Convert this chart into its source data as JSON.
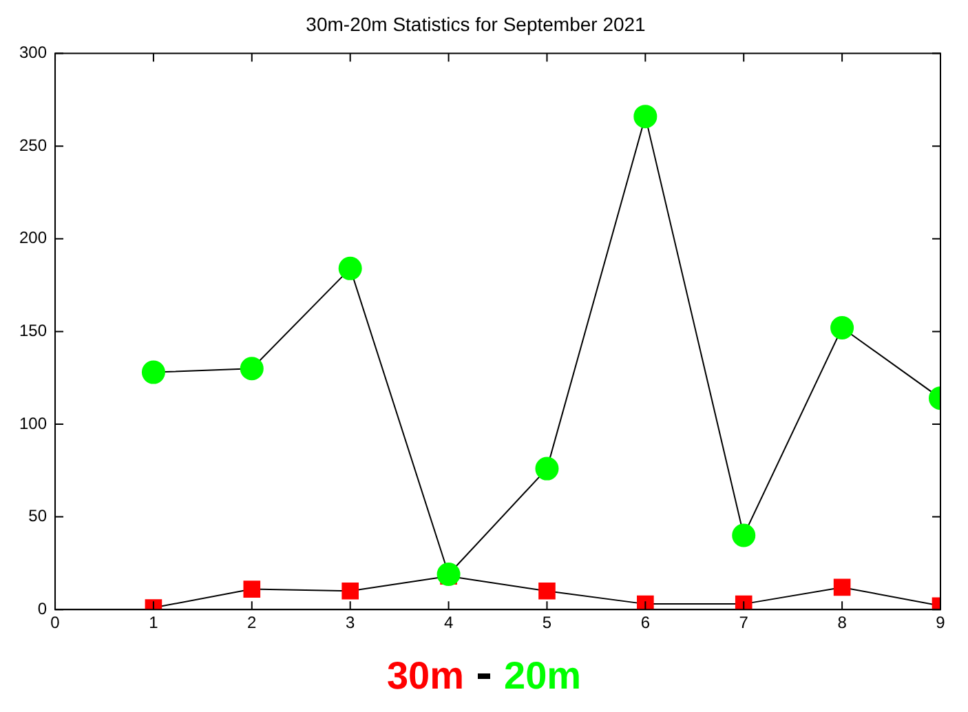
{
  "chart_data": {
    "type": "line",
    "title": "30m-20m Statistics for September 2021",
    "x": [
      1,
      2,
      3,
      4,
      5,
      6,
      7,
      8,
      9
    ],
    "series": [
      {
        "name": "30m",
        "color": "#ff0000",
        "marker": "square",
        "values": [
          1,
          11,
          10,
          18,
          10,
          3,
          3,
          12,
          2
        ]
      },
      {
        "name": "20m",
        "color": "#00ff00",
        "marker": "circle",
        "values": [
          128,
          130,
          184,
          19,
          76,
          266,
          40,
          152,
          114
        ]
      }
    ],
    "xlim": [
      0,
      9
    ],
    "xticks": [
      0,
      1,
      2,
      3,
      4,
      5,
      6,
      7,
      8,
      9
    ],
    "ylim": [
      0,
      300
    ],
    "yticks": [
      0,
      50,
      100,
      150,
      200,
      250,
      300
    ],
    "grid": false,
    "legend": "bottom",
    "line_style": "solid"
  }
}
